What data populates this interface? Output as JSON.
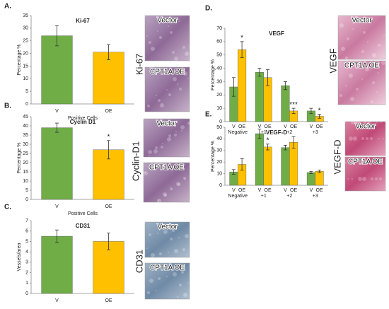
{
  "chart_data": [
    {
      "type": "bar",
      "panel": "A.",
      "title": "Ki-67",
      "ylabel": "Percentage %",
      "xlabel": "Positive Cells",
      "categories": [
        "V",
        "OE"
      ],
      "values": [
        27,
        20.5
      ],
      "errors": [
        4,
        3
      ],
      "colors": [
        "#70ad47",
        "#ffc000"
      ],
      "ylim": [
        0,
        35
      ],
      "yticks": [
        0,
        5,
        10,
        15,
        20,
        25,
        30,
        35
      ],
      "stain": "Ki-67",
      "image_captions": [
        "Vector",
        "CPT1A OE"
      ]
    },
    {
      "type": "bar",
      "panel": "B.",
      "title": "Cyclin D1",
      "ylabel": "Percentage %",
      "xlabel": "Positive Cells",
      "categories": [
        "V",
        "OE"
      ],
      "values": [
        39,
        27
      ],
      "errors": [
        2.5,
        5
      ],
      "significance": [
        null,
        "*"
      ],
      "colors": [
        "#70ad47",
        "#ffc000"
      ],
      "ylim": [
        0,
        45
      ],
      "yticks": [
        0,
        5,
        10,
        15,
        20,
        25,
        30,
        35,
        40,
        45
      ],
      "stain": "Cyclin-D1",
      "image_captions": [
        "Vector",
        "CPT1A OE"
      ]
    },
    {
      "type": "bar",
      "panel": "C.",
      "title": "CD31",
      "ylabel": "Vessels/area",
      "categories": [
        "V",
        "OE"
      ],
      "values": [
        5.5,
        5.0
      ],
      "errors": [
        0.6,
        0.8
      ],
      "colors": [
        "#70ad47",
        "#ffc000"
      ],
      "ylim": [
        0,
        7
      ],
      "yticks": [
        0,
        1,
        2,
        3,
        4,
        5,
        6,
        7
      ],
      "stain": "CD31",
      "image_captions": [
        "Vector",
        "CPT1A OE"
      ]
    },
    {
      "type": "grouped-bar",
      "panel": "D.",
      "title": "VEGF",
      "ylabel": "Percentage %",
      "categories": [
        "Negative",
        "+1",
        "+2",
        "+3"
      ],
      "series": [
        {
          "name": "V",
          "color": "#70ad47",
          "values": [
            26,
            37,
            27,
            8
          ],
          "errors": [
            7,
            3,
            3,
            2
          ],
          "significance": [
            null,
            null,
            null,
            null
          ]
        },
        {
          "name": "OE",
          "color": "#ffc000",
          "values": [
            54,
            33,
            8,
            4
          ],
          "errors": [
            6,
            6,
            2,
            1.5
          ],
          "significance": [
            "*",
            null,
            "***",
            "*"
          ]
        }
      ],
      "ylim": [
        0,
        70
      ],
      "yticks": [
        0,
        10,
        20,
        30,
        40,
        50,
        60,
        70
      ],
      "stain": "VEGF",
      "image_captions": [
        "Vector",
        "CPT1A OE"
      ]
    },
    {
      "type": "grouped-bar",
      "panel": "E.",
      "title": "VEGF-D",
      "ylabel": "Percentage %",
      "categories": [
        "Negative",
        "+1",
        "+2",
        "+3"
      ],
      "series": [
        {
          "name": "V",
          "color": "#70ad47",
          "values": [
            11.5,
            44.5,
            32.5,
            11
          ],
          "errors": [
            2,
            4,
            2,
            1
          ],
          "significance": [
            null,
            null,
            null,
            null
          ]
        },
        {
          "name": "OE",
          "color": "#ffc000",
          "values": [
            18,
            33,
            37,
            12
          ],
          "errors": [
            5,
            2.5,
            5,
            1
          ],
          "significance": [
            null,
            "*",
            null,
            null
          ]
        }
      ],
      "ylim": [
        0,
        50
      ],
      "yticks": [
        0,
        10,
        20,
        30,
        40,
        50
      ],
      "stain": "VEGF-D",
      "image_captions": [
        "Vector",
        "CPT1A OE"
      ]
    }
  ]
}
